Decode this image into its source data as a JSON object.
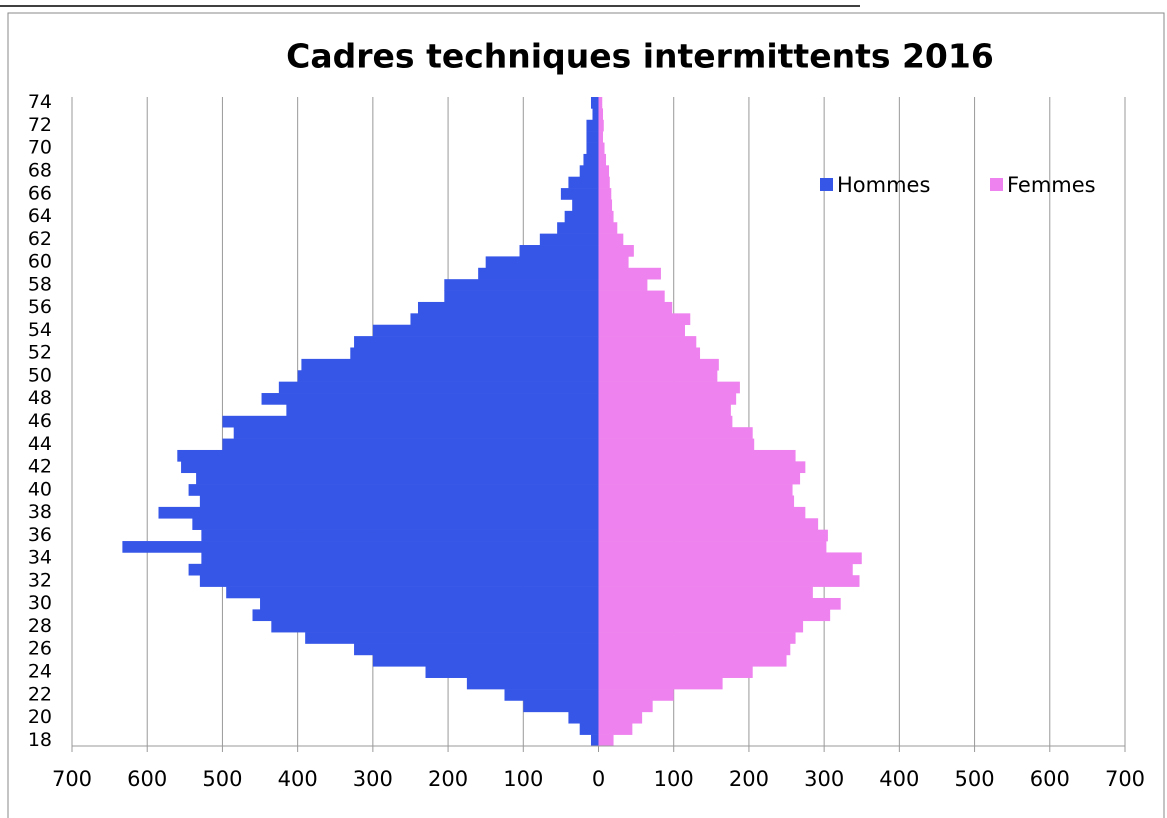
{
  "chart_data": {
    "type": "pyramid",
    "title": "Cadres techniques intermittents 2016",
    "categories": [
      "18",
      null,
      "20",
      null,
      "22",
      null,
      "24",
      null,
      "26",
      null,
      "28",
      null,
      "30",
      null,
      "32",
      null,
      "34",
      null,
      "36",
      null,
      "38",
      null,
      "40",
      null,
      "42",
      null,
      "44",
      null,
      "46",
      null,
      "48",
      null,
      "50",
      null,
      "52",
      null,
      "54",
      null,
      "56",
      null,
      "58",
      null,
      "60",
      null,
      "62",
      null,
      "64",
      null,
      "66",
      null,
      "68",
      null,
      "70",
      null,
      "72",
      null,
      "74"
    ],
    "series": [
      {
        "name": "Hommes",
        "color": "#3656e8",
        "side": "left",
        "values": [
          10,
          25,
          40,
          100,
          125,
          175,
          230,
          300,
          325,
          390,
          435,
          460,
          450,
          495,
          530,
          545,
          528,
          633,
          528,
          540,
          585,
          530,
          545,
          535,
          555,
          560,
          500,
          485,
          500,
          415,
          448,
          425,
          400,
          395,
          330,
          325,
          300,
          250,
          240,
          205,
          205,
          160,
          150,
          105,
          78,
          55,
          45,
          35,
          50,
          40,
          25,
          20,
          16,
          16,
          16,
          8,
          10
        ]
      },
      {
        "name": "Femmes",
        "color": "#ee82ee",
        "side": "right",
        "values": [
          20,
          45,
          58,
          72,
          100,
          165,
          205,
          250,
          255,
          262,
          272,
          308,
          322,
          285,
          347,
          338,
          350,
          303,
          305,
          292,
          275,
          260,
          258,
          268,
          275,
          262,
          207,
          205,
          178,
          176,
          183,
          188,
          158,
          160,
          135,
          130,
          115,
          122,
          98,
          88,
          65,
          83,
          40,
          47,
          33,
          25,
          20,
          18,
          17,
          15,
          14,
          10,
          8,
          6,
          7,
          6,
          5
        ]
      }
    ],
    "xlim": [
      -700,
      700
    ],
    "xticks": [
      {
        "value": -700,
        "label": "700"
      },
      {
        "value": -600,
        "label": "600"
      },
      {
        "value": -500,
        "label": "500"
      },
      {
        "value": -400,
        "label": "400"
      },
      {
        "value": -300,
        "label": "300"
      },
      {
        "value": -200,
        "label": "200"
      },
      {
        "value": -100,
        "label": "100"
      },
      0,
      100,
      200,
      300,
      400,
      500,
      600,
      700
    ],
    "grid": true,
    "legend": "upper right"
  }
}
